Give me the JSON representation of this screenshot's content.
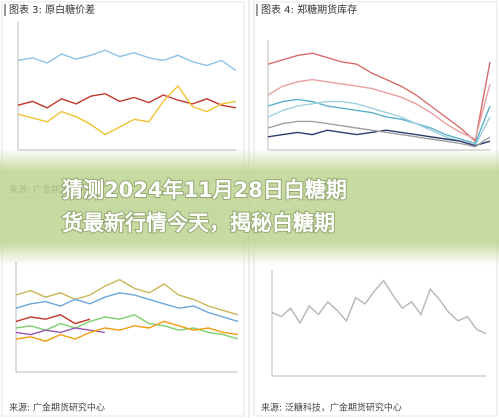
{
  "header": {
    "lines": [
      "猜测2024年11月28日白糖期",
      "货最新行情今天，揭秘白糖期"
    ]
  },
  "panels": [
    {
      "title": "图表 3: 原白糖价差",
      "source": "来源: 广金期货研究中心",
      "ylim": [
        0,
        100
      ],
      "series": [
        {
          "color": "#8fc3e6",
          "values": [
            70,
            72,
            68,
            75,
            71,
            74,
            78,
            73,
            76,
            72,
            70,
            74,
            69,
            66,
            70,
            62
          ]
        },
        {
          "color": "#c0392b",
          "values": [
            35,
            38,
            33,
            40,
            36,
            42,
            44,
            38,
            41,
            37,
            43,
            39,
            36,
            40,
            35,
            33
          ]
        },
        {
          "color": "#f1c232",
          "values": [
            28,
            25,
            22,
            30,
            26,
            20,
            12,
            18,
            24,
            22,
            38,
            50,
            34,
            30,
            36,
            38
          ]
        }
      ]
    },
    {
      "title": "图表 4: 郑糖期货库存",
      "source": "",
      "ylim": [
        0,
        100
      ],
      "series": [
        {
          "color": "#d96b6b",
          "values": [
            78,
            82,
            86,
            88,
            84,
            80,
            78,
            70,
            64,
            58,
            50,
            40,
            30,
            20,
            8,
            80
          ]
        },
        {
          "color": "#e8a0a0",
          "values": [
            50,
            58,
            62,
            64,
            62,
            60,
            58,
            56,
            52,
            48,
            42,
            34,
            24,
            16,
            10,
            60
          ]
        },
        {
          "color": "#5bb0c8",
          "values": [
            40,
            44,
            46,
            44,
            40,
            38,
            36,
            34,
            30,
            28,
            24,
            20,
            14,
            10,
            6,
            40
          ]
        },
        {
          "color": "#9fd1e0",
          "values": [
            30,
            36,
            40,
            42,
            44,
            44,
            42,
            38,
            34,
            30,
            24,
            18,
            12,
            8,
            4,
            30
          ]
        },
        {
          "color": "#2c3e70",
          "values": [
            12,
            14,
            16,
            14,
            18,
            16,
            14,
            16,
            18,
            16,
            14,
            12,
            10,
            8,
            4,
            8
          ]
        },
        {
          "color": "#a0a0a0",
          "values": [
            20,
            24,
            26,
            26,
            24,
            22,
            20,
            18,
            16,
            14,
            12,
            10,
            8,
            6,
            3,
            12
          ]
        }
      ]
    },
    {
      "title": "",
      "source": "来源: 广金期货研究中心",
      "ylim": [
        0,
        100
      ],
      "series": [
        {
          "color": "#c9b458",
          "values": [
            70,
            74,
            68,
            72,
            66,
            70,
            78,
            84,
            76,
            72,
            80,
            70,
            66,
            60,
            56,
            52
          ]
        },
        {
          "color": "#6aa7d8",
          "values": [
            58,
            62,
            64,
            60,
            66,
            62,
            68,
            72,
            70,
            66,
            62,
            58,
            60,
            54,
            50,
            46
          ]
        },
        {
          "color": "#7ccf6e",
          "values": [
            40,
            42,
            38,
            44,
            40,
            46,
            50,
            48,
            52,
            44,
            42,
            38,
            40,
            36,
            34,
            30
          ]
        },
        {
          "color": "#c0392b",
          "values": [
            46,
            50,
            48,
            52,
            44,
            48,
            null,
            null,
            null,
            null,
            null,
            null,
            null,
            null,
            null,
            null
          ]
        },
        {
          "color": "#9b59b6",
          "values": [
            36,
            34,
            38,
            36,
            40,
            38,
            36,
            null,
            null,
            null,
            null,
            null,
            null,
            null,
            null,
            null
          ]
        },
        {
          "color": "#f39c12",
          "values": [
            30,
            32,
            28,
            34,
            30,
            36,
            40,
            38,
            42,
            40,
            46,
            42,
            38,
            40,
            36,
            34
          ]
        }
      ]
    },
    {
      "title": "",
      "source": "来源: 泛糖科技，广金期货研究中心",
      "ylim": [
        0,
        100
      ],
      "series": [
        {
          "color": "#b5b5b5",
          "values": [
            60,
            56,
            64,
            50,
            66,
            58,
            70,
            62,
            52,
            74,
            68,
            80,
            90,
            76,
            64,
            70,
            58,
            82,
            72,
            60,
            52,
            56,
            44,
            40
          ]
        }
      ]
    }
  ]
}
